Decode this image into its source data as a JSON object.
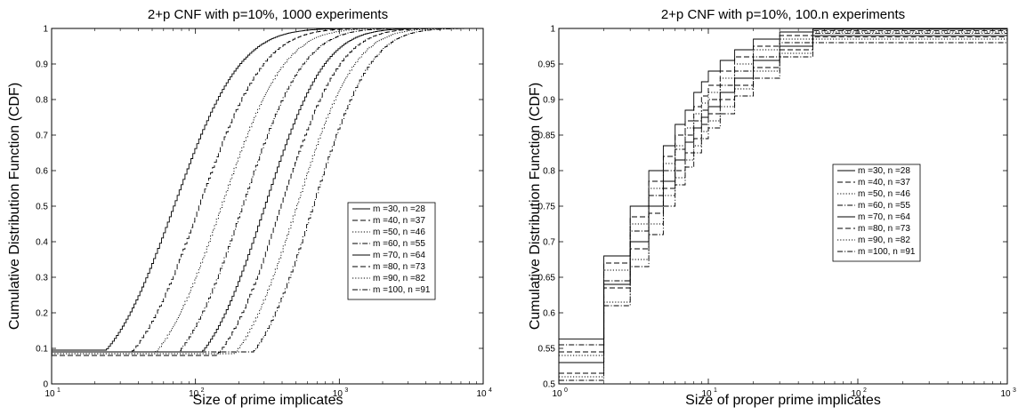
{
  "chart_data": [
    {
      "type": "line",
      "title": "2+p CNF with p=10%, 1000 experiments",
      "xlabel": "Size of prime implicates",
      "ylabel": "Cumulative Distribution Function (CDF)",
      "xscale": "log",
      "xlim": [
        10,
        10000
      ],
      "ylim": [
        0,
        1
      ],
      "xticks": [
        {
          "base": "10",
          "exp": "1"
        },
        {
          "base": "10",
          "exp": "2"
        },
        {
          "base": "10",
          "exp": "3"
        },
        {
          "base": "10",
          "exp": "4"
        }
      ],
      "yticks": [
        "0",
        "0.1",
        "0.2",
        "0.3",
        "0.4",
        "0.5",
        "0.6",
        "0.7",
        "0.8",
        "0.9",
        "1"
      ],
      "legend_position": "center-right",
      "series": [
        {
          "name": "m =30, n =28",
          "style": "solid",
          "median": 70,
          "spread": 0.72,
          "floor": 0.095
        },
        {
          "name": "m =40, n =37",
          "style": "dashed",
          "median": 105,
          "spread": 0.7,
          "floor": 0.09
        },
        {
          "name": "m =50, n =46",
          "style": "dotted",
          "median": 150,
          "spread": 0.68,
          "floor": 0.085
        },
        {
          "name": "m =60, n =55",
          "style": "dashdot",
          "median": 210,
          "spread": 0.66,
          "floor": 0.09
        },
        {
          "name": "m =70, n =64",
          "style": "solid",
          "median": 300,
          "spread": 0.65,
          "floor": 0.09
        },
        {
          "name": "m =80, n =73",
          "style": "dashed",
          "median": 390,
          "spread": 0.64,
          "floor": 0.08
        },
        {
          "name": "m =90, n =82",
          "style": "dotted",
          "median": 500,
          "spread": 0.63,
          "floor": 0.085
        },
        {
          "name": "m =100, n =91",
          "style": "dashdot",
          "median": 650,
          "spread": 0.62,
          "floor": 0.09
        }
      ]
    },
    {
      "type": "line",
      "title": "2+p CNF with p=10%, 100.n experiments",
      "xlabel": "Size of proper prime implicates",
      "ylabel": "Cumulative Distribution Function (CDF)",
      "xscale": "log",
      "xlim": [
        1,
        1000
      ],
      "ylim": [
        0.5,
        1
      ],
      "xticks": [
        {
          "base": "10",
          "exp": "0"
        },
        {
          "base": "10",
          "exp": "1"
        },
        {
          "base": "10",
          "exp": "2"
        },
        {
          "base": "10",
          "exp": "3"
        }
      ],
      "yticks": [
        "0.5",
        "0.55",
        "0.6",
        "0.65",
        "0.7",
        "0.75",
        "0.8",
        "0.85",
        "0.9",
        "0.95",
        "1"
      ],
      "legend_position": "center-right",
      "series": [
        {
          "name": "m =30, n =28",
          "style": "solid",
          "values": [
            [
              1,
              0.563
            ],
            [
              2,
              0.68
            ],
            [
              3,
              0.75
            ],
            [
              4,
              0.8
            ],
            [
              5,
              0.835
            ],
            [
              6,
              0.865
            ],
            [
              7,
              0.885
            ],
            [
              8,
              0.91
            ],
            [
              9,
              0.925
            ],
            [
              10,
              0.94
            ],
            [
              12,
              0.955
            ],
            [
              15,
              0.97
            ],
            [
              20,
              0.985
            ],
            [
              30,
              0.995
            ],
            [
              50,
              0.999
            ],
            [
              1000,
              1
            ]
          ]
        },
        {
          "name": "m =40, n =37",
          "style": "dashed",
          "values": [
            [
              1,
              0.545
            ],
            [
              2,
              0.67
            ],
            [
              3,
              0.735
            ],
            [
              4,
              0.785
            ],
            [
              5,
              0.82
            ],
            [
              6,
              0.85
            ],
            [
              7,
              0.87
            ],
            [
              8,
              0.89
            ],
            [
              9,
              0.905
            ],
            [
              10,
              0.92
            ],
            [
              12,
              0.94
            ],
            [
              15,
              0.96
            ],
            [
              20,
              0.975
            ],
            [
              30,
              0.99
            ],
            [
              50,
              0.997
            ],
            [
              1000,
              1
            ]
          ]
        },
        {
          "name": "m =50, n =46",
          "style": "dotted",
          "values": [
            [
              1,
              0.54
            ],
            [
              2,
              0.66
            ],
            [
              3,
              0.725
            ],
            [
              4,
              0.775
            ],
            [
              5,
              0.81
            ],
            [
              6,
              0.835
            ],
            [
              7,
              0.86
            ],
            [
              8,
              0.88
            ],
            [
              9,
              0.895
            ],
            [
              10,
              0.91
            ],
            [
              12,
              0.93
            ],
            [
              15,
              0.95
            ],
            [
              20,
              0.97
            ],
            [
              30,
              0.985
            ],
            [
              50,
              0.995
            ],
            [
              1000,
              1
            ]
          ]
        },
        {
          "name": "m =60, n =55",
          "style": "dashdot",
          "values": [
            [
              1,
              0.555
            ],
            [
              2,
              0.645
            ],
            [
              3,
              0.715
            ],
            [
              4,
              0.765
            ],
            [
              5,
              0.8
            ],
            [
              6,
              0.83
            ],
            [
              7,
              0.85
            ],
            [
              8,
              0.87
            ],
            [
              9,
              0.885
            ],
            [
              10,
              0.9
            ],
            [
              12,
              0.92
            ],
            [
              15,
              0.94
            ],
            [
              20,
              0.96
            ],
            [
              30,
              0.98
            ],
            [
              50,
              0.993
            ],
            [
              1000,
              1
            ]
          ]
        },
        {
          "name": "m =70, n =64",
          "style": "solid",
          "values": [
            [
              1,
              0.53
            ],
            [
              2,
              0.64
            ],
            [
              3,
              0.7
            ],
            [
              4,
              0.75
            ],
            [
              5,
              0.785
            ],
            [
              6,
              0.815
            ],
            [
              7,
              0.84
            ],
            [
              8,
              0.86
            ],
            [
              9,
              0.875
            ],
            [
              10,
              0.89
            ],
            [
              12,
              0.91
            ],
            [
              15,
              0.93
            ],
            [
              20,
              0.955
            ],
            [
              30,
              0.975
            ],
            [
              50,
              0.99
            ],
            [
              1000,
              1
            ]
          ]
        },
        {
          "name": "m =80, n =73",
          "style": "dashed",
          "values": [
            [
              1,
              0.515
            ],
            [
              2,
              0.635
            ],
            [
              3,
              0.69
            ],
            [
              4,
              0.74
            ],
            [
              5,
              0.775
            ],
            [
              6,
              0.8
            ],
            [
              7,
              0.825
            ],
            [
              8,
              0.845
            ],
            [
              9,
              0.865
            ],
            [
              10,
              0.88
            ],
            [
              12,
              0.9
            ],
            [
              15,
              0.92
            ],
            [
              20,
              0.945
            ],
            [
              30,
              0.97
            ],
            [
              50,
              0.988
            ],
            [
              1000,
              1
            ]
          ]
        },
        {
          "name": "m =90, n =82",
          "style": "dotted",
          "values": [
            [
              1,
              0.51
            ],
            [
              2,
              0.615
            ],
            [
              3,
              0.675
            ],
            [
              4,
              0.725
            ],
            [
              5,
              0.765
            ],
            [
              6,
              0.79
            ],
            [
              7,
              0.815
            ],
            [
              8,
              0.835
            ],
            [
              9,
              0.855
            ],
            [
              10,
              0.87
            ],
            [
              12,
              0.89
            ],
            [
              15,
              0.915
            ],
            [
              20,
              0.94
            ],
            [
              30,
              0.965
            ],
            [
              50,
              0.985
            ],
            [
              1000,
              1
            ]
          ]
        },
        {
          "name": "m =100, n =91",
          "style": "dashdot",
          "values": [
            [
              1,
              0.505
            ],
            [
              2,
              0.61
            ],
            [
              3,
              0.665
            ],
            [
              4,
              0.71
            ],
            [
              5,
              0.75
            ],
            [
              6,
              0.78
            ],
            [
              7,
              0.805
            ],
            [
              8,
              0.825
            ],
            [
              9,
              0.845
            ],
            [
              10,
              0.86
            ],
            [
              12,
              0.88
            ],
            [
              15,
              0.905
            ],
            [
              20,
              0.93
            ],
            [
              30,
              0.96
            ],
            [
              50,
              0.98
            ],
            [
              1000,
              1
            ]
          ]
        }
      ]
    }
  ]
}
